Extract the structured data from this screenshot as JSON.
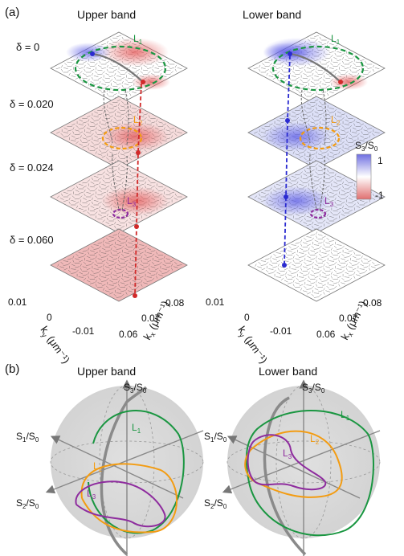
{
  "panel_a": {
    "label": "(a)",
    "upper_title": "Upper band",
    "lower_title": "Lower band",
    "deltas": [
      "δ = 0",
      "δ = 0.020",
      "δ = 0.024",
      "δ = 0.060"
    ],
    "loop_labels": [
      "L",
      "L",
      "L"
    ],
    "loop_subs": [
      "1",
      "2",
      "3"
    ],
    "loop_colors": [
      "#1a9641",
      "#f39c12",
      "#8e2c9e"
    ],
    "colorbar": {
      "title": "S",
      "title_sub1": "3",
      "title_mid": "/S",
      "title_sub2": "0",
      "max_label": "1",
      "min_label": "-1",
      "top_color": "#6f6fe0",
      "bottom_color": "#e07070"
    },
    "axes": {
      "ky_ticks": [
        "0.01",
        "0",
        "-0.01"
      ],
      "kx_ticks": [
        "0.08",
        "0.07",
        "0.06"
      ],
      "ky_label": "k",
      "ky_sub": "y",
      "ky_unit": " (μm⁻¹)",
      "kx_label": "k",
      "kx_sub": "x",
      "kx_unit": " (μm⁻¹)"
    }
  },
  "panel_b": {
    "label": "(b)",
    "upper_title": "Upper band",
    "lower_title": "Lower band",
    "s3": {
      "a": "S",
      "s1": "3",
      "b": "/S",
      "s2": "0"
    },
    "s1": {
      "a": "S",
      "s1": "1",
      "b": "/S",
      "s2": "0"
    },
    "s2": {
      "a": "S",
      "s1": "2",
      "b": "/S",
      "s2": "0"
    }
  }
}
